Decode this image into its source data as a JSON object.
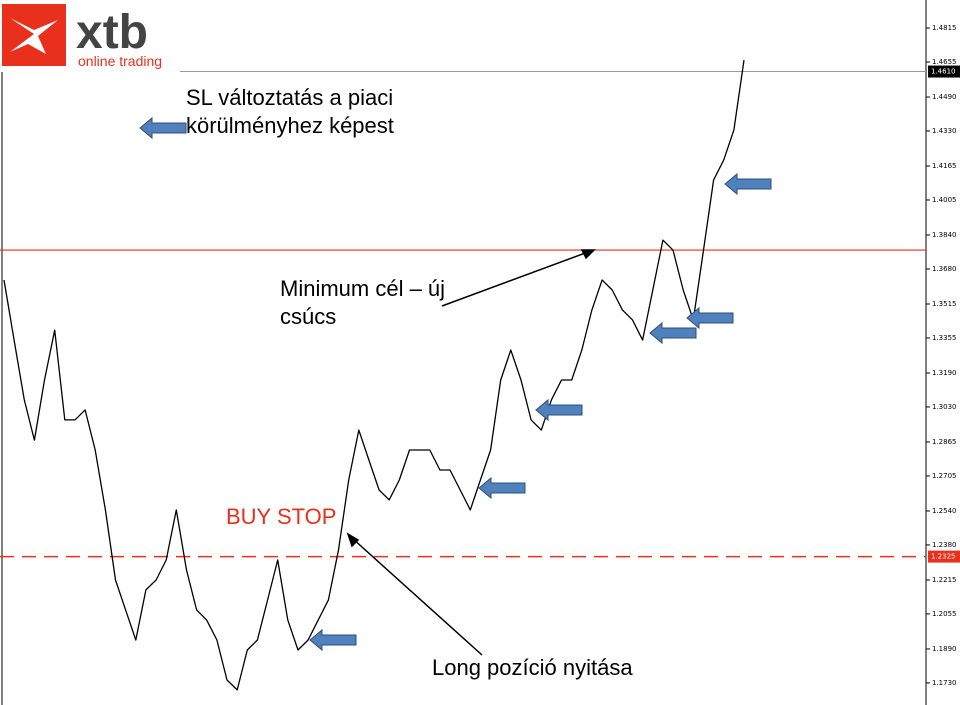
{
  "chart_data": {
    "type": "line",
    "logo": {
      "brand": "xtb",
      "tagline": "online trading"
    },
    "annotations": [
      "SL változtatás a piaci körülményhez képest",
      "Minimum cél – új csúcs",
      "BUY STOP",
      "Long pozíció nyitása"
    ],
    "categories": [
      null,
      null,
      null,
      null,
      null,
      null,
      null,
      null,
      null,
      null,
      null,
      null,
      null,
      null,
      null,
      null,
      null,
      null,
      null,
      null,
      null,
      null,
      null,
      null,
      null,
      null,
      null,
      null,
      null,
      null,
      null,
      null,
      null,
      null,
      null,
      null,
      null,
      null,
      null,
      null,
      null,
      null,
      null,
      null,
      null,
      null,
      null,
      null,
      null,
      null,
      null,
      null,
      null,
      null,
      null,
      null,
      null,
      null,
      null,
      null,
      null,
      null,
      null,
      null,
      null,
      null,
      null,
      null,
      null,
      null,
      null,
      null,
      null,
      null
    ],
    "series": [
      {
        "color": "#000000",
        "values": [
          1.3628,
          1.3345,
          1.3063,
          1.2874,
          1.3157,
          1.3392,
          1.2969,
          1.2969,
          1.3016,
          1.2827,
          1.2545,
          1.2215,
          1.2074,
          1.1932,
          1.2168,
          1.2215,
          1.2309,
          1.2545,
          1.2262,
          1.2074,
          1.2026,
          1.1932,
          1.1744,
          1.1697,
          1.1885,
          1.1932,
          1.2121,
          1.2309,
          1.2026,
          1.1885,
          1.1932,
          1.2026,
          1.2121,
          1.2356,
          1.2686,
          1.2921,
          1.278,
          1.2639,
          1.2592,
          1.2686,
          1.2827,
          1.2827,
          1.2827,
          1.2733,
          1.2733,
          1.2639,
          1.2545,
          1.2686,
          1.2827,
          1.3157,
          1.3298,
          1.3157,
          1.2969,
          1.2921,
          1.3063,
          1.3157,
          1.3157,
          1.3298,
          1.3487,
          1.3628,
          1.3581,
          1.3487,
          1.344,
          1.3345,
          1.3581,
          1.3816,
          1.3769,
          1.3581,
          1.344,
          1.3769,
          1.4099,
          1.4193,
          1.4335,
          1.4664
        ]
      }
    ],
    "ylim": [
      1.1626,
      1.4947
    ],
    "yticks": [
      1.4815,
      {
        "value": 1.4655,
        "label": "1.4655"
      },
      {
        "value": 1.449,
        "label": "1.4490"
      },
      {
        "value": 1.433,
        "label": "1.4330"
      },
      1.4165,
      1.4005,
      {
        "value": 1.384,
        "label": "1.3840"
      },
      {
        "value": 1.368,
        "label": "1.3680"
      },
      1.3515,
      1.3355,
      {
        "value": 1.319,
        "label": "1.3190"
      },
      {
        "value": 1.303,
        "label": "1.3030"
      },
      1.2865,
      1.2705,
      {
        "value": 1.254,
        "label": "1.2540"
      },
      {
        "value": 1.238,
        "label": "1.2380"
      },
      1.2215,
      1.2055,
      {
        "value": 1.189,
        "label": "1.1890"
      },
      {
        "value": 1.173,
        "label": "1.1730"
      }
    ],
    "price_labels": [
      {
        "value": 1.461,
        "label": "1.4610",
        "color": "#999999"
      },
      {
        "value": 1.2325,
        "label": "1.2325",
        "color": "#e8301c"
      }
    ],
    "target_level": 1.3769
  }
}
